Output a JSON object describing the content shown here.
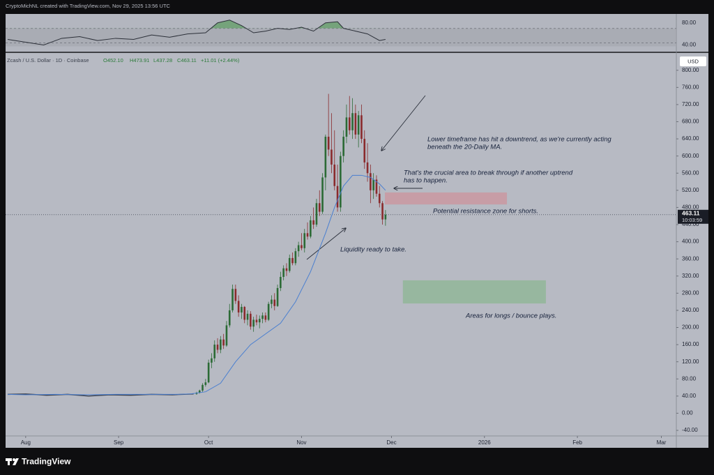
{
  "header": {
    "credit": "CryptoMichNL created with TradingView.com, Nov 29, 2025 13:56 UTC",
    "brand": "TradingView"
  },
  "chart_data": {
    "type": "candlestick",
    "title": "Zcash / U.S. Dollar · 1D · Coinbase",
    "ohlc_header": [
      "O452.10",
      "H473.91",
      "L437.28",
      "C463.11",
      "+11.01 (+2.44%)"
    ],
    "currency": "USD",
    "last_price": 463.11,
    "countdown": "10:03:59",
    "up_color": "#2b6a35",
    "down_color": "#8a2a2c",
    "x": [
      57,
      58,
      59,
      60,
      61,
      62,
      63,
      64,
      65,
      66,
      67,
      68,
      69,
      70,
      71,
      72,
      73,
      74,
      75,
      76,
      77,
      78,
      79,
      80,
      81,
      82,
      83,
      84,
      85,
      86,
      87,
      88,
      89,
      90,
      91,
      92,
      93,
      94,
      95,
      96,
      97,
      98,
      99,
      100,
      101,
      102,
      103,
      104,
      105,
      106,
      107,
      108,
      109,
      110,
      111,
      112,
      113,
      114,
      115,
      116,
      117,
      118,
      119,
      120
    ],
    "open": [
      45,
      48,
      53,
      66,
      72,
      118,
      128,
      160,
      148,
      172,
      158,
      205,
      240,
      290,
      262,
      235,
      248,
      218,
      232,
      202,
      218,
      212,
      220,
      228,
      218,
      255,
      265,
      250,
      292,
      318,
      338,
      332,
      362,
      350,
      378,
      392,
      385,
      420,
      412,
      450,
      440,
      490,
      470,
      550,
      645,
      615,
      580,
      530,
      480,
      600,
      645,
      690,
      660,
      700,
      650,
      695,
      640,
      585,
      560,
      520,
      545,
      512,
      490,
      452.1
    ],
    "high": [
      50,
      55,
      70,
      80,
      125,
      140,
      170,
      175,
      180,
      185,
      215,
      255,
      300,
      300,
      275,
      255,
      250,
      240,
      238,
      225,
      230,
      228,
      235,
      235,
      260,
      275,
      280,
      300,
      330,
      345,
      350,
      370,
      375,
      385,
      400,
      420,
      430,
      445,
      460,
      480,
      500,
      520,
      560,
      650,
      745,
      700,
      660,
      580,
      610,
      660,
      720,
      740,
      735,
      720,
      705,
      720,
      660,
      630,
      580,
      560,
      555,
      530,
      495,
      473.91
    ],
    "low": [
      43,
      46,
      50,
      62,
      70,
      105,
      120,
      140,
      140,
      150,
      155,
      200,
      235,
      255,
      225,
      220,
      210,
      205,
      195,
      190,
      205,
      198,
      210,
      212,
      215,
      245,
      240,
      248,
      285,
      310,
      320,
      328,
      345,
      345,
      365,
      380,
      375,
      405,
      408,
      430,
      435,
      460,
      465,
      520,
      600,
      560,
      520,
      470,
      470,
      585,
      630,
      650,
      640,
      640,
      620,
      630,
      570,
      540,
      490,
      500,
      505,
      480,
      440,
      437.28
    ],
    "close": [
      48,
      53,
      66,
      72,
      118,
      128,
      160,
      148,
      172,
      158,
      205,
      240,
      290,
      262,
      235,
      248,
      218,
      232,
      202,
      218,
      212,
      220,
      228,
      218,
      255,
      265,
      250,
      292,
      318,
      338,
      332,
      362,
      350,
      378,
      392,
      385,
      420,
      412,
      450,
      440,
      490,
      470,
      550,
      645,
      615,
      580,
      530,
      480,
      600,
      645,
      690,
      660,
      700,
      650,
      695,
      640,
      585,
      560,
      520,
      545,
      512,
      490,
      452,
      463.11
    ],
    "early_line": {
      "color": "#3a3f4a",
      "x": [
        -6,
        0,
        7,
        14,
        21,
        28,
        35,
        42,
        49,
        56
      ],
      "values": [
        44,
        45,
        42,
        44,
        40,
        43,
        42,
        44,
        43,
        45
      ]
    },
    "ma": {
      "color": "#4a7fd0",
      "x": [
        -6,
        0,
        10,
        20,
        30,
        40,
        50,
        55,
        60,
        65,
        70,
        75,
        80,
        85,
        90,
        95,
        100,
        103,
        106,
        109,
        112,
        115,
        118,
        120
      ],
      "values": [
        44,
        43,
        44,
        43,
        44,
        44,
        44,
        45,
        50,
        70,
        120,
        160,
        185,
        210,
        260,
        330,
        420,
        480,
        530,
        555,
        555,
        550,
        535,
        520
      ]
    },
    "zones": [
      {
        "color": "#c99aa3",
        "xlim": [
          119.8,
          160.5
        ],
        "ylim": [
          487,
          515
        ]
      },
      {
        "color": "#93b79b",
        "xlim": [
          125.8,
          173.5
        ],
        "ylim": [
          256,
          310
        ]
      }
    ],
    "annotations": [
      {
        "lines": [
          "Lower timeframe has hit a downtrend, as we're currently acting",
          "beneath the 20-Daily MA."
        ]
      },
      {
        "lines": [
          "That's the crucial area to break through if another uptrend",
          "has to happen."
        ]
      },
      {
        "lines": [
          "Potential resistance zone for shorts."
        ]
      },
      {
        "lines": [
          "Liquidity ready to take."
        ]
      },
      {
        "lines": [
          "Areas for longs / bounce plays."
        ]
      }
    ],
    "xlim": [
      -6.7,
      217
    ],
    "xticks": [
      {
        "value": 0,
        "label": "Aug"
      },
      {
        "value": 31,
        "label": "Sep"
      },
      {
        "value": 61,
        "label": "Oct"
      },
      {
        "value": 92,
        "label": "Nov"
      },
      {
        "value": 122,
        "label": "Dec"
      },
      {
        "value": 153,
        "label": "2026"
      },
      {
        "value": 184,
        "label": "Feb"
      },
      {
        "value": 212,
        "label": "Mar"
      }
    ],
    "ylim": [
      -53,
      837
    ],
    "yticks": [
      {
        "value": -40,
        "label": "-40.00"
      },
      {
        "value": 0,
        "label": "0.00"
      },
      {
        "value": 40,
        "label": "40.00"
      },
      {
        "value": 80,
        "label": "80.00"
      },
      {
        "value": 120,
        "label": "120.00"
      },
      {
        "value": 160,
        "label": "160.00"
      },
      {
        "value": 200,
        "label": "200.00"
      },
      {
        "value": 240,
        "label": "240.00"
      },
      {
        "value": 280,
        "label": "280.00"
      },
      {
        "value": 320,
        "label": "320.00"
      },
      {
        "value": 360,
        "label": "360.00"
      },
      {
        "value": 400,
        "label": "400.00"
      },
      {
        "value": 440,
        "label": "440.00"
      },
      {
        "value": 480,
        "label": "480.00"
      },
      {
        "value": 520,
        "label": "520.00"
      },
      {
        "value": 560,
        "label": "560.00"
      },
      {
        "value": 600,
        "label": "600.00"
      },
      {
        "value": 640,
        "label": "640.00"
      },
      {
        "value": 680,
        "label": "680.00"
      },
      {
        "value": 720,
        "label": "720.00"
      },
      {
        "value": 760,
        "label": "760.00"
      },
      {
        "value": 800,
        "label": "800.00"
      }
    ],
    "rsi": {
      "color": "#2b2f38",
      "fill": "#6aa06e",
      "threshold": 70,
      "ylim": [
        28,
        96
      ],
      "yticks": [
        {
          "value": 80,
          "label": "80.00"
        },
        {
          "value": 40,
          "label": "40.00"
        }
      ],
      "x": [
        -6,
        0,
        6,
        12,
        18,
        24,
        30,
        36,
        42,
        48,
        54,
        60,
        64,
        68,
        72,
        76,
        80,
        84,
        88,
        92,
        96,
        100,
        104,
        106,
        110,
        114,
        118,
        120
      ],
      "values": [
        50,
        45,
        40,
        52,
        55,
        48,
        52,
        50,
        58,
        54,
        60,
        62,
        80,
        85,
        75,
        62,
        65,
        70,
        68,
        72,
        65,
        80,
        82,
        70,
        65,
        60,
        48,
        50
      ]
    }
  }
}
